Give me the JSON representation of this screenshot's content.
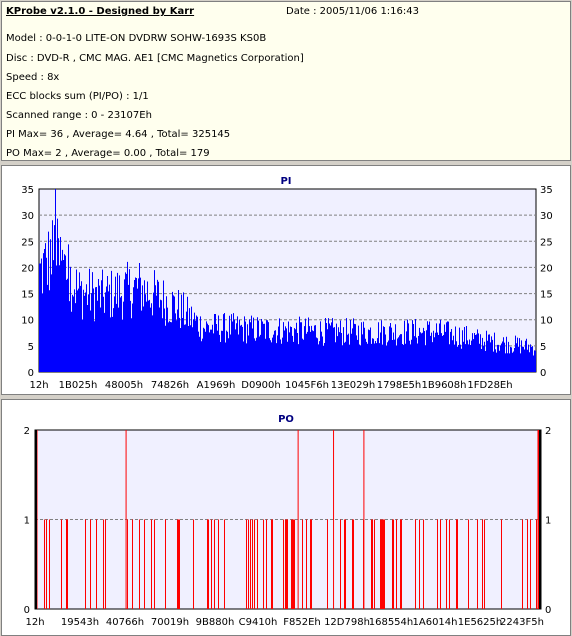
{
  "header": {
    "app_title": "KProbe v2.1.0 - Designed by Karr",
    "date": "Date : 2005/11/06 1:16:43",
    "lines": [
      "Model : 0-0-1-0 LITE-ON DVDRW SOHW-1693S KS0B",
      "Disc : DVD-R , CMC MAG. AE1 [CMC Magnetics Corporation]",
      "Speed : 8x",
      "ECC blocks sum (PI/PO) : 1/1",
      "Scanned range : 0 - 23107Eh",
      "PI Max= 36 , Average= 4.64 , Total= 325145",
      "PO Max= 2 , Average= 0.00 , Total= 179"
    ]
  },
  "colors": {
    "pi": "#0000ff",
    "po": "#ff0000",
    "plot_bg": "#f0f0ff",
    "title": "#000080"
  },
  "chart_data": [
    {
      "type": "area",
      "title": "PI",
      "ylim": [
        0,
        35
      ],
      "yticks": [
        0,
        5,
        10,
        15,
        20,
        25,
        30,
        35
      ],
      "xticklabels": [
        "12h",
        "1B025h",
        "48005h",
        "74826h",
        "A1969h",
        "D0900h",
        "1045F6h",
        "13E029h",
        "1798E5h",
        "1B9608h",
        "1FD28Eh"
      ],
      "max": 36,
      "average": 4.64,
      "profile_x": [
        0,
        0.03,
        0.08,
        0.13,
        0.2,
        0.27,
        0.33,
        0.36,
        0.45,
        0.6,
        0.8,
        0.9,
        1.0
      ],
      "profile_y": [
        22,
        27,
        18,
        17,
        19,
        15,
        10,
        10,
        9.5,
        9,
        9,
        7,
        5.5
      ],
      "grid": true
    },
    {
      "type": "bar",
      "title": "PO",
      "ylim": [
        0,
        2
      ],
      "yticks": [
        0,
        1,
        2
      ],
      "xticklabels": [
        "12h",
        "19543h",
        "40766h",
        "70019h",
        "9B880h",
        "C9410h",
        "F852Eh",
        "12D798h",
        "168554h",
        "1A6014h",
        "1E5625h",
        "2243F5h"
      ],
      "max": 2,
      "total": 179,
      "spikes_level2": [
        0.0,
        0.18,
        0.52,
        0.59,
        0.65,
        0.995
      ],
      "grid": true
    }
  ]
}
